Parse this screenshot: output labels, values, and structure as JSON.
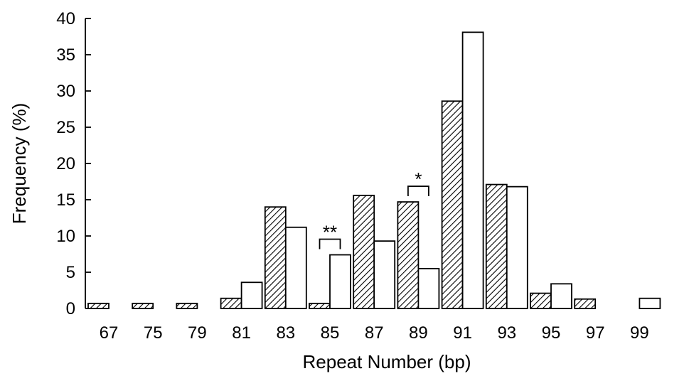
{
  "chart_data": {
    "type": "bar",
    "title": "",
    "xlabel": "Repeat Number (bp)",
    "ylabel": "Frequency (%)",
    "ylim": [
      0,
      40
    ],
    "yticks": [
      "0",
      "5",
      "10",
      "15",
      "20",
      "25",
      "30",
      "35",
      "40"
    ],
    "grid": false,
    "categories": [
      "67",
      "75",
      "79",
      "81",
      "83",
      "85",
      "87",
      "89",
      "91",
      "93",
      "95",
      "97",
      "99"
    ],
    "series": [
      {
        "style": "hatched",
        "values": [
          0.7,
          0.7,
          0.7,
          1.4,
          14.0,
          0.7,
          15.6,
          14.7,
          28.6,
          17.1,
          2.1,
          1.3,
          0
        ]
      },
      {
        "style": "open",
        "values": [
          0,
          0,
          0,
          3.6,
          11.2,
          7.4,
          9.3,
          5.5,
          38.1,
          16.8,
          3.4,
          0,
          1.4
        ]
      }
    ],
    "annotations": [
      {
        "category": "85",
        "text": "**"
      },
      {
        "category": "89",
        "text": "*"
      }
    ]
  }
}
